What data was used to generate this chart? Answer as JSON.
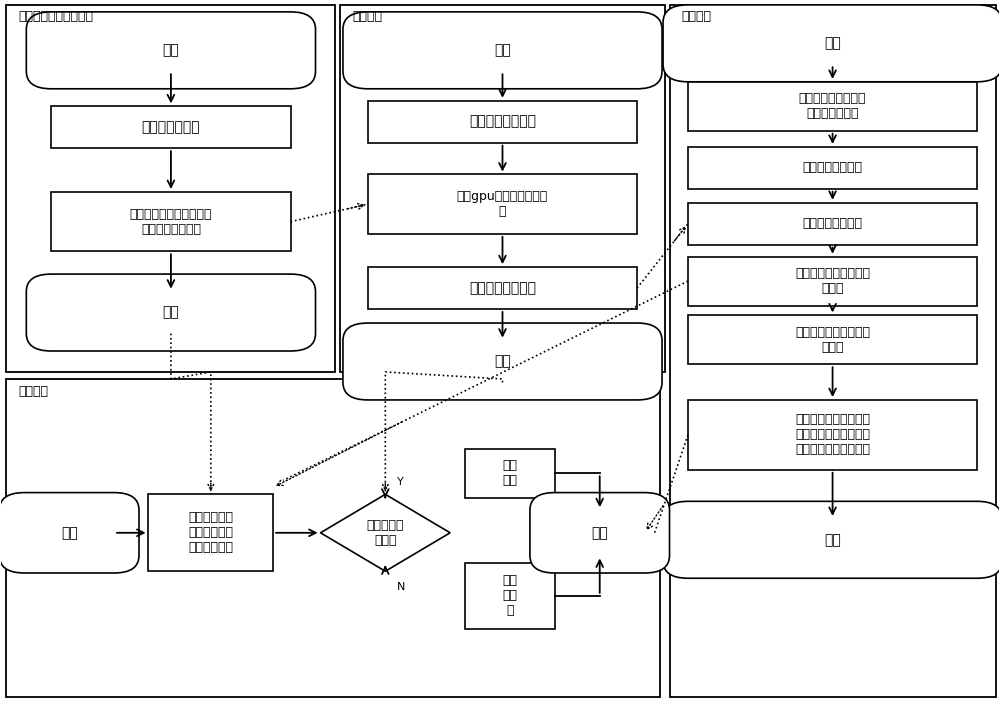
{
  "bg_color": "#ffffff",
  "s1_title": "数据收集与预处理阶段",
  "s2_title": "训练阶段",
  "s3_title": "预测阶段",
  "s4_title": "比对阶段",
  "s1_nodes": [
    "开始",
    "收集人脸训练集",
    "调整训练集，并对训练集\n进行标准化预处理",
    "结束"
  ],
  "s2_nodes": [
    "开始",
    "构建训练神经网络",
    "使用gpu加速开始训练网\n络",
    "保存网络参数模型",
    "结束"
  ],
  "s3_nodes": [
    "开始",
    "待识别人脸图片测试\n集标准化预处理",
    "构建预测神经网络",
    "加载网络参数模型",
    "测试集投入网路得到特\n征向量",
    "训练集投入网络得到特\n征向量",
    "对训练集的得到特征向\n量抽样计算距离，选择\n最优阈值作为判定标准",
    "结束"
  ],
  "s4_nodes": [
    "开始",
    "计算待比对图\n片对应特征向\n量的欧式距离",
    "距离小于最\n优阈值",
    "是同\n一人",
    "不是\n同一\n人",
    "结束"
  ],
  "font_size": 10,
  "small_font_size": 9,
  "title_font_size": 9
}
